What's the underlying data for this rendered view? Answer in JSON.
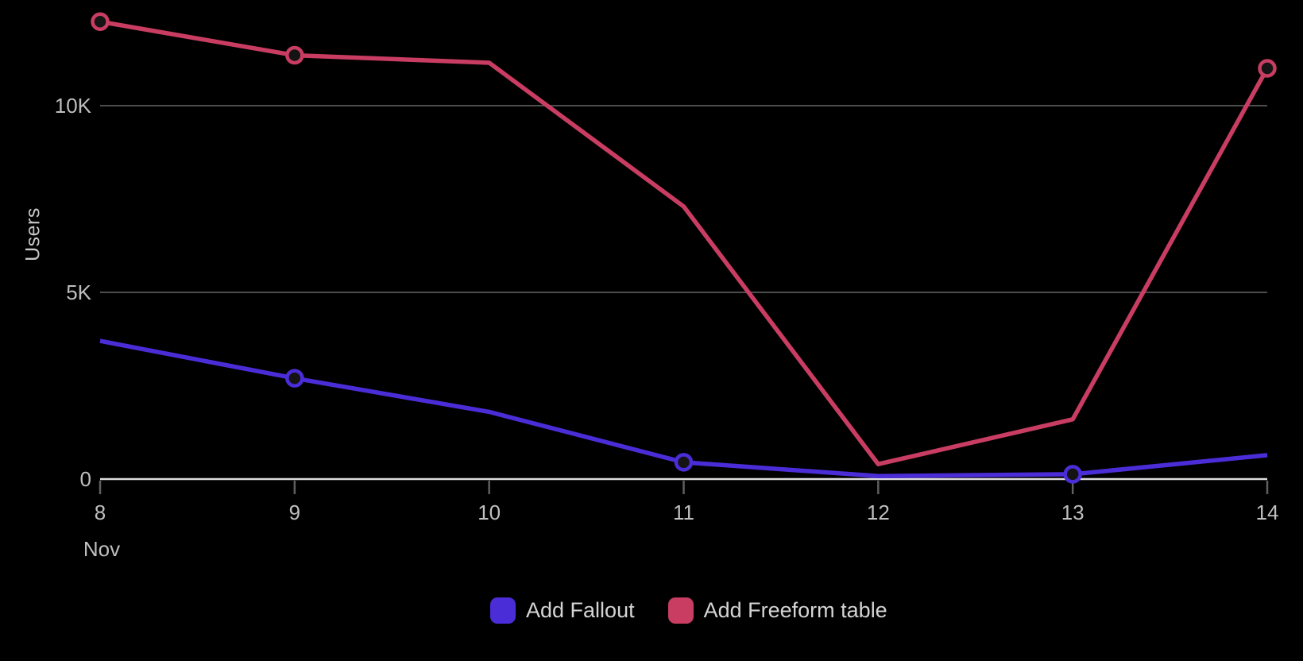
{
  "chart_data": {
    "type": "line",
    "title": "",
    "x_axis": {
      "month_label": "Nov",
      "categories": [
        "8",
        "9",
        "10",
        "11",
        "12",
        "13",
        "14"
      ]
    },
    "y_axis": {
      "title": "Users",
      "ticks": [
        {
          "label": "0",
          "value": 0
        },
        {
          "label": "5K",
          "value": 5000
        },
        {
          "label": "10K",
          "value": 10000
        }
      ],
      "range": [
        0,
        12800
      ],
      "grid": "horizontal gridlines at 5K and 10K"
    },
    "series": [
      {
        "name": "Add Fallout",
        "color": "#4b2dd8",
        "values": [
          3700,
          2700,
          1800,
          450,
          80,
          130,
          640
        ],
        "marker_indices": [
          1,
          3,
          5
        ]
      },
      {
        "name": "Add Freeform table",
        "color": "#c93d63",
        "values": [
          12250,
          11350,
          11150,
          7300,
          400,
          1600,
          11000
        ],
        "marker_indices": [
          0,
          1,
          6
        ]
      }
    ],
    "legend_position": "bottom-center"
  },
  "legend": {
    "items": [
      {
        "label": "Add Fallout",
        "color": "#4b2dd8"
      },
      {
        "label": "Add Freeform table",
        "color": "#c93d63"
      }
    ]
  },
  "colors": {
    "background": "#000000",
    "axis_line": "#dcdcdc",
    "gridline": "#4d4d4d",
    "tick_mark": "#5f5f5f",
    "tick_text": "#bfbfbf",
    "legend_text": "#d4d4d4",
    "marker_fill": "#141414"
  }
}
